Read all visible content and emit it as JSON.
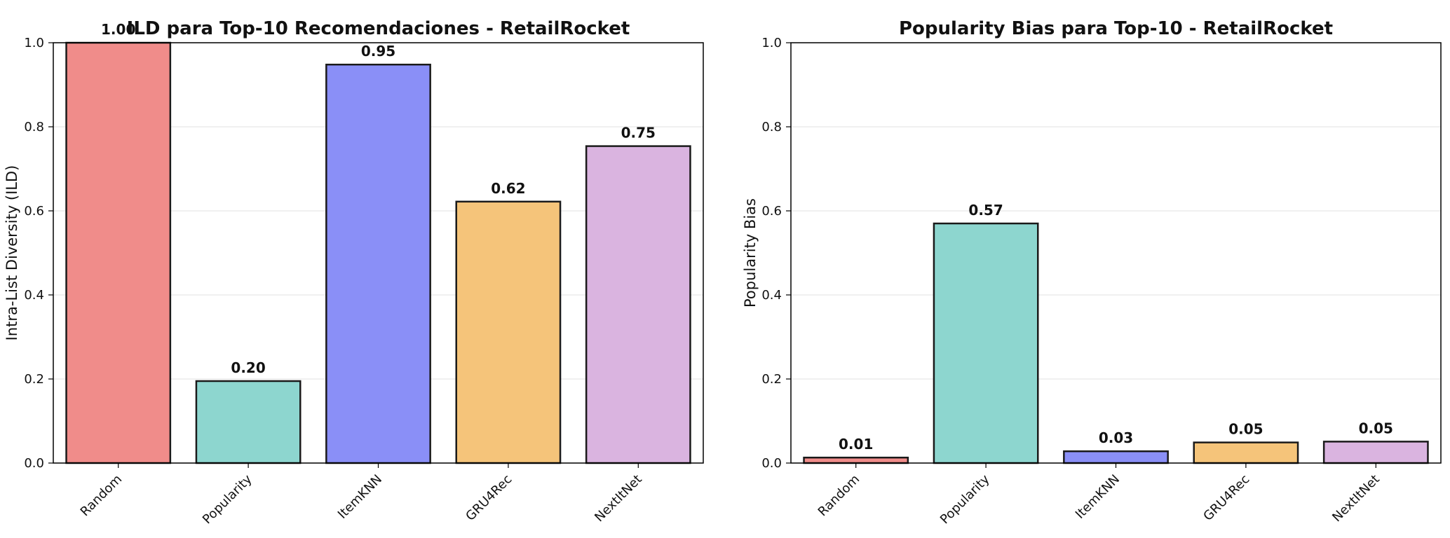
{
  "colors": {
    "bars": [
      "#f08c8a",
      "#8dd6cf",
      "#8a8ff7",
      "#f5c47a",
      "#dab4e0"
    ],
    "edge": "#1a1a1a",
    "grid": "#e6e6e6",
    "text": "#111111",
    "frame": "#000000"
  },
  "chart_data": [
    {
      "type": "bar",
      "title": "ILD para Top-10 Recomendaciones - RetailRocket",
      "xlabel": "",
      "ylabel": "Intra-List Diversity (ILD)",
      "categories": [
        "Random",
        "Popularity",
        "ItemKNN",
        "GRU4Rec",
        "NextItNet"
      ],
      "values": [
        1.0,
        0.195,
        0.948,
        0.622,
        0.754
      ],
      "value_labels": [
        "1.00",
        "0.20",
        "0.95",
        "0.62",
        "0.75"
      ],
      "ylim": [
        0,
        1.0
      ],
      "yticks": [
        "0.0",
        "0.2",
        "0.4",
        "0.6",
        "0.8",
        "1.0"
      ],
      "grid": "horizontal"
    },
    {
      "type": "bar",
      "title": "Popularity Bias para Top-10 - RetailRocket",
      "xlabel": "",
      "ylabel": "Popularity Bias",
      "categories": [
        "Random",
        "Popularity",
        "ItemKNN",
        "GRU4Rec",
        "NextItNet"
      ],
      "values": [
        0.013,
        0.57,
        0.028,
        0.049,
        0.051
      ],
      "value_labels": [
        "0.01",
        "0.57",
        "0.03",
        "0.05",
        "0.05"
      ],
      "ylim": [
        0,
        1.0
      ],
      "yticks": [
        "0.0",
        "0.2",
        "0.4",
        "0.6",
        "0.8",
        "1.0"
      ],
      "grid": "horizontal"
    }
  ]
}
